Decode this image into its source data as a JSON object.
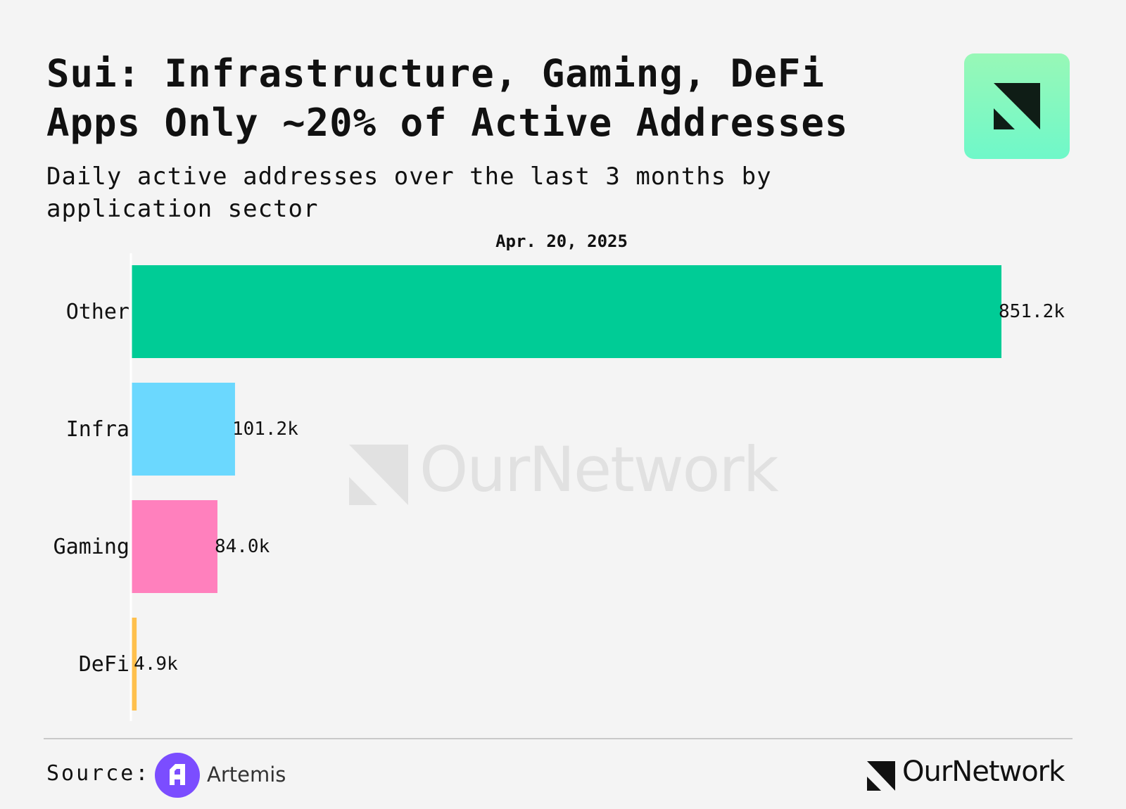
{
  "header": {
    "title": "Sui: Infrastructure, Gaming, DeFi Apps Only ~20% of Active Addresses",
    "subtitle": "Daily active addresses over the last 3 months by application sector"
  },
  "chart_data": {
    "type": "bar",
    "orientation": "horizontal",
    "date_label": "Apr. 20, 2025",
    "categories": [
      "Other",
      "Infra",
      "Gaming",
      "DeFi"
    ],
    "values": [
      851200,
      101200,
      84000,
      4900
    ],
    "value_labels": [
      "851.2k",
      "101.2k",
      "84.0k",
      "4.9k"
    ],
    "colors": [
      "#00cc96",
      "#6bd8fe",
      "#ff80bd",
      "#ffc04d"
    ],
    "xlim": [
      0,
      851200
    ],
    "grid": false,
    "legend": "none"
  },
  "watermark": {
    "text": "OurNetwork"
  },
  "footer": {
    "source_label": "Source:",
    "source_name": "Artemis",
    "brand": "OurNetwork"
  },
  "icons": {
    "badge": "ournetwork-logo-icon",
    "source": "artemis-logo-icon",
    "footer": "ournetwork-logo-icon"
  }
}
